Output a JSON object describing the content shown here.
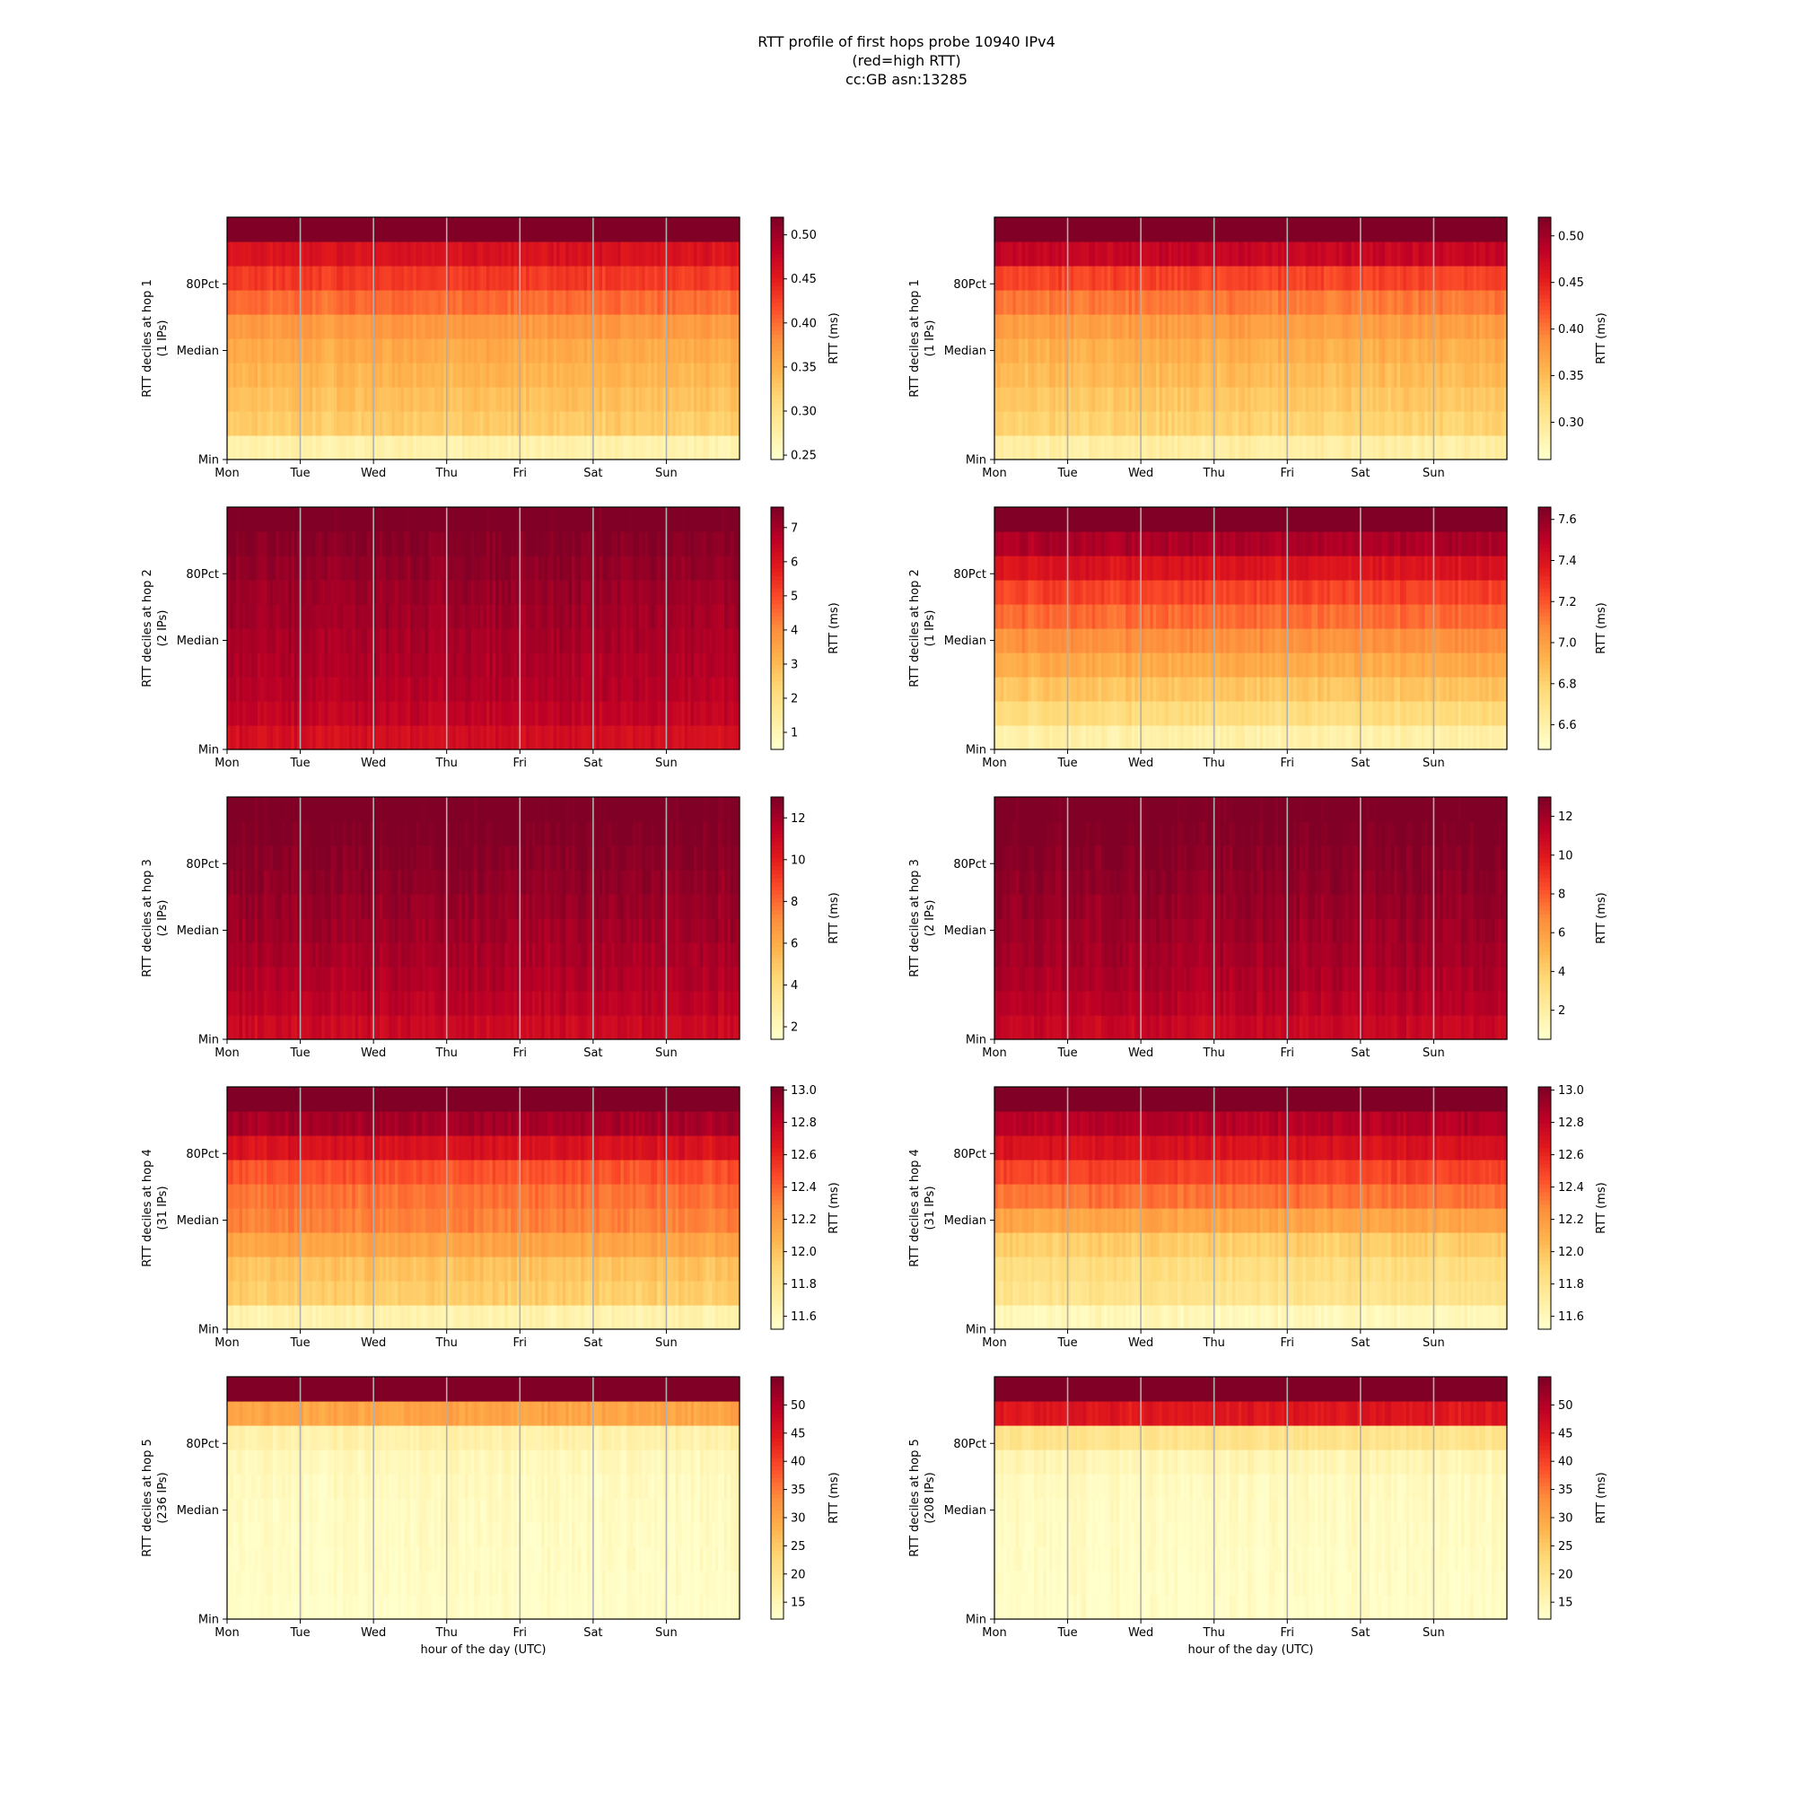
{
  "figure": {
    "title_lines": [
      "RTT profile of first hops probe 10940 IPv4",
      "(red=high RTT)",
      "cc:GB asn:13285"
    ]
  },
  "chart_data": {
    "type": "heatmap",
    "colormap": "YlOrRd",
    "x_tick_labels": [
      "Mon",
      "Tue",
      "Wed",
      "Thu",
      "Fri",
      "Sat",
      "Sun"
    ],
    "y_tick_labels": [
      "Min",
      "Median",
      "80Pct"
    ],
    "xlabel": "hour of the day (UTC)",
    "colorbar_label": "RTT (ms)",
    "grid_vertical": true,
    "panels": [
      {
        "hop": 1,
        "column": "left",
        "ylabel": "RTT deciles at hop 1",
        "ips": "(1 IPs)",
        "cbar_range": [
          0.245,
          0.52
        ],
        "cbar_ticks": [
          "0.25",
          "0.30",
          "0.35",
          "0.40",
          "0.45",
          "0.50"
        ],
        "decile_values": [
          0.27,
          0.325,
          0.335,
          0.345,
          0.355,
          0.37,
          0.4,
          0.43,
          0.46,
          0.53
        ]
      },
      {
        "hop": 1,
        "column": "right",
        "ylabel": "RTT deciles at hop 1",
        "ips": "(1 IPs)",
        "cbar_range": [
          0.26,
          0.52
        ],
        "cbar_ticks": [
          "0.30",
          "0.35",
          "0.40",
          "0.45",
          "0.50"
        ],
        "decile_values": [
          0.29,
          0.33,
          0.34,
          0.35,
          0.36,
          0.375,
          0.4,
          0.43,
          0.48,
          0.53
        ]
      },
      {
        "hop": 2,
        "column": "left",
        "ylabel": "RTT deciles at hop 2",
        "ips": "(2 IPs)",
        "cbar_range": [
          0.5,
          7.6
        ],
        "cbar_ticks": [
          "1",
          "2",
          "3",
          "4",
          "5",
          "6",
          "7"
        ],
        "decile_values": [
          6.2,
          6.6,
          6.8,
          6.9,
          7.0,
          7.1,
          7.2,
          7.35,
          7.5,
          7.8
        ]
      },
      {
        "hop": 2,
        "column": "right",
        "ylabel": "RTT deciles at hop 2",
        "ips": "(1 IPs)",
        "cbar_range": [
          6.48,
          7.66
        ],
        "cbar_ticks": [
          "6.6",
          "6.8",
          "7.0",
          "7.2",
          "7.4",
          "7.6"
        ],
        "decile_values": [
          6.6,
          6.75,
          6.85,
          6.95,
          7.05,
          7.15,
          7.25,
          7.4,
          7.55,
          7.8
        ]
      },
      {
        "hop": 3,
        "column": "left",
        "ylabel": "RTT deciles at hop 3",
        "ips": "(2 IPs)",
        "cbar_range": [
          1.4,
          13.0
        ],
        "cbar_ticks": [
          "2",
          "4",
          "6",
          "8",
          "10",
          "12"
        ],
        "decile_values": [
          11.0,
          11.5,
          11.8,
          12.0,
          12.2,
          12.4,
          12.6,
          12.8,
          13.0,
          13.2
        ]
      },
      {
        "hop": 3,
        "column": "right",
        "ylabel": "RTT deciles at hop 3",
        "ips": "(2 IPs)",
        "cbar_range": [
          0.5,
          13.0
        ],
        "cbar_ticks": [
          "2",
          "4",
          "6",
          "8",
          "10",
          "12"
        ],
        "decile_values": [
          11.0,
          11.5,
          11.8,
          12.0,
          12.2,
          12.4,
          12.6,
          12.8,
          13.0,
          13.2
        ]
      },
      {
        "hop": 4,
        "column": "left",
        "ylabel": "RTT deciles at hop 4",
        "ips": "(31 IPs)",
        "cbar_range": [
          11.52,
          13.02
        ],
        "cbar_ticks": [
          "11.6",
          "11.8",
          "12.0",
          "12.2",
          "12.4",
          "12.6",
          "12.8",
          "13.0"
        ],
        "decile_values": [
          11.65,
          11.95,
          12.0,
          12.15,
          12.3,
          12.35,
          12.45,
          12.7,
          12.9,
          13.1
        ]
      },
      {
        "hop": 4,
        "column": "right",
        "ylabel": "RTT deciles at hop 4",
        "ips": "(31 IPs)",
        "cbar_range": [
          11.52,
          13.02
        ],
        "cbar_ticks": [
          "11.6",
          "11.8",
          "12.0",
          "12.2",
          "12.4",
          "12.6",
          "12.8",
          "13.0"
        ],
        "decile_values": [
          11.6,
          11.8,
          11.85,
          11.95,
          12.15,
          12.35,
          12.5,
          12.7,
          12.85,
          13.1
        ]
      },
      {
        "hop": 5,
        "column": "left",
        "ylabel": "RTT deciles at hop 5",
        "ips": "(236 IPs)",
        "cbar_range": [
          12.0,
          55.0
        ],
        "cbar_ticks": [
          "15",
          "20",
          "25",
          "30",
          "35",
          "40",
          "45",
          "50"
        ],
        "decile_values": [
          12.5,
          12.7,
          12.9,
          13.1,
          13.3,
          13.6,
          14.2,
          16.0,
          30.0,
          60.0
        ]
      },
      {
        "hop": 5,
        "column": "right",
        "ylabel": "RTT deciles at hop 5",
        "ips": "(208 IPs)",
        "cbar_range": [
          12.0,
          55.0
        ],
        "cbar_ticks": [
          "15",
          "20",
          "25",
          "30",
          "35",
          "40",
          "45",
          "50"
        ],
        "decile_values": [
          12.5,
          12.7,
          12.9,
          13.1,
          13.3,
          13.6,
          15.0,
          20.0,
          45.0,
          60.0
        ]
      }
    ]
  }
}
